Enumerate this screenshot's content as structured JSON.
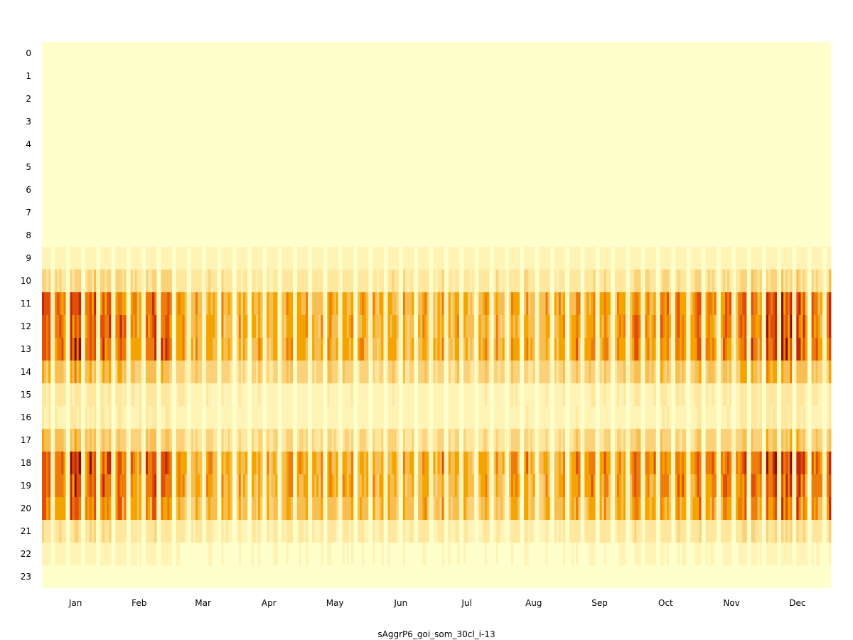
{
  "chart_data": {
    "type": "heatmap",
    "title": "",
    "xlabel": "sAggrP6_goi_som_30cl_i-13",
    "ylabel": "",
    "x_tick_labels": [
      "Jan",
      "Feb",
      "Mar",
      "Apr",
      "May",
      "Jun",
      "Jul",
      "Aug",
      "Sep",
      "Oct",
      "Nov",
      "Dec"
    ],
    "y_tick_labels": [
      "0",
      "1",
      "2",
      "3",
      "4",
      "5",
      "6",
      "7",
      "8",
      "9",
      "10",
      "11",
      "12",
      "13",
      "14",
      "15",
      "16",
      "17",
      "18",
      "19",
      "20",
      "21",
      "22",
      "23"
    ],
    "n_days": 365,
    "colormap": "YlOrRd",
    "color_stops": [
      "#ffffcc",
      "#fff3b5",
      "#ffe79e",
      "#fbd27a",
      "#f7bf52",
      "#f4a400",
      "#ec7d0b",
      "#e04e08",
      "#c0280a",
      "#8b0a00"
    ],
    "hourly_profile": {
      "hours": [
        0,
        1,
        2,
        3,
        4,
        5,
        6,
        7,
        8,
        9,
        10,
        11,
        12,
        13,
        14,
        15,
        16,
        17,
        18,
        19,
        20,
        21,
        22,
        23
      ],
      "level": [
        0,
        0,
        0,
        0,
        0,
        0,
        0,
        0,
        0,
        0.08,
        0.22,
        0.5,
        0.5,
        0.5,
        0.32,
        0.14,
        0.12,
        0.28,
        0.52,
        0.5,
        0.45,
        0.18,
        0.05,
        0
      ]
    },
    "monthly_intensity": [
      1.45,
      1.25,
      1.1,
      0.95,
      1.0,
      1.02,
      1.02,
      1.05,
      1.1,
      1.2,
      1.3,
      1.45
    ],
    "active_days": [
      "weekdays"
    ],
    "colorbar": false,
    "grid": false
  }
}
